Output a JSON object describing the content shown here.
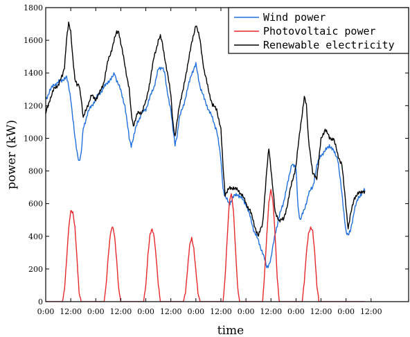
{
  "chart_data": {
    "type": "line",
    "title": "",
    "xlabel": "time",
    "ylabel": "power (kW)",
    "ylim": [
      0,
      1800
    ],
    "yticks": [
      "0",
      "200",
      "400",
      "600",
      "800",
      "1000",
      "1200",
      "1400",
      "1600",
      "1800"
    ],
    "xlim": [
      0,
      174
    ],
    "xtick_labels": [
      "0:00",
      "12:00",
      "0:00",
      "12:00",
      "0:00",
      "12:00",
      "0:00",
      "12:00",
      "0:00",
      "12:00",
      "0:00",
      "12:00",
      "0:00",
      "12:00"
    ],
    "grid": false,
    "legend": {
      "position": "top-right"
    },
    "series": [
      {
        "name": "Wind power",
        "color": "#1f6fdc",
        "points": [
          [
            0,
            1240
          ],
          [
            2,
            1290
          ],
          [
            4,
            1330
          ],
          [
            6,
            1340
          ],
          [
            8,
            1360
          ],
          [
            10,
            1370
          ],
          [
            11,
            1320
          ],
          [
            12,
            1250
          ],
          [
            13,
            1120
          ],
          [
            14,
            1000
          ],
          [
            15,
            920
          ],
          [
            16,
            860
          ],
          [
            17,
            900
          ],
          [
            18,
            1060
          ],
          [
            20,
            1150
          ],
          [
            22,
            1200
          ],
          [
            24,
            1240
          ],
          [
            26,
            1280
          ],
          [
            28,
            1310
          ],
          [
            30,
            1350
          ],
          [
            32,
            1370
          ],
          [
            33,
            1400
          ],
          [
            34,
            1360
          ],
          [
            36,
            1290
          ],
          [
            38,
            1200
          ],
          [
            39,
            1100
          ],
          [
            40,
            1000
          ],
          [
            41,
            960
          ],
          [
            42,
            1000
          ],
          [
            44,
            1100
          ],
          [
            46,
            1150
          ],
          [
            48,
            1180
          ],
          [
            50,
            1250
          ],
          [
            52,
            1320
          ],
          [
            54,
            1420
          ],
          [
            56,
            1440
          ],
          [
            57,
            1400
          ],
          [
            58,
            1300
          ],
          [
            60,
            1180
          ],
          [
            61,
            1050
          ],
          [
            62,
            960
          ],
          [
            63,
            1020
          ],
          [
            64,
            1120
          ],
          [
            66,
            1200
          ],
          [
            68,
            1300
          ],
          [
            70,
            1400
          ],
          [
            72,
            1450
          ],
          [
            74,
            1320
          ],
          [
            76,
            1240
          ],
          [
            78,
            1180
          ],
          [
            80,
            1120
          ],
          [
            82,
            1050
          ],
          [
            84,
            870
          ],
          [
            85,
            700
          ],
          [
            86,
            640
          ],
          [
            88,
            600
          ],
          [
            90,
            640
          ],
          [
            92,
            660
          ],
          [
            94,
            630
          ],
          [
            96,
            600
          ],
          [
            98,
            520
          ],
          [
            100,
            430
          ],
          [
            102,
            370
          ],
          [
            104,
            300
          ],
          [
            106,
            210
          ],
          [
            107,
            230
          ],
          [
            108,
            260
          ],
          [
            110,
            420
          ],
          [
            112,
            520
          ],
          [
            114,
            610
          ],
          [
            116,
            720
          ],
          [
            118,
            850
          ],
          [
            120,
            810
          ],
          [
            121,
            580
          ],
          [
            122,
            500
          ],
          [
            124,
            560
          ],
          [
            126,
            660
          ],
          [
            128,
            700
          ],
          [
            130,
            830
          ],
          [
            132,
            900
          ],
          [
            134,
            920
          ],
          [
            136,
            960
          ],
          [
            138,
            920
          ],
          [
            140,
            880
          ],
          [
            142,
            660
          ],
          [
            144,
            430
          ],
          [
            145,
            400
          ],
          [
            146,
            430
          ],
          [
            148,
            560
          ],
          [
            150,
            640
          ],
          [
            152,
            670
          ],
          [
            153,
            680
          ]
        ]
      },
      {
        "name": "Photovoltaic power",
        "color": "#e8272c",
        "points": [
          [
            0,
            0
          ],
          [
            8,
            0
          ],
          [
            9,
            80
          ],
          [
            10,
            250
          ],
          [
            11,
            440
          ],
          [
            12,
            560
          ],
          [
            13,
            550
          ],
          [
            14,
            450
          ],
          [
            15,
            260
          ],
          [
            16,
            60
          ],
          [
            17,
            0
          ],
          [
            28,
            0
          ],
          [
            29,
            100
          ],
          [
            30,
            280
          ],
          [
            31,
            420
          ],
          [
            32,
            460
          ],
          [
            33,
            400
          ],
          [
            34,
            260
          ],
          [
            35,
            80
          ],
          [
            36,
            0
          ],
          [
            47,
            0
          ],
          [
            48,
            100
          ],
          [
            49,
            290
          ],
          [
            50,
            410
          ],
          [
            51,
            440
          ],
          [
            52,
            400
          ],
          [
            53,
            270
          ],
          [
            54,
            100
          ],
          [
            55,
            0
          ],
          [
            66,
            0
          ],
          [
            67,
            60
          ],
          [
            68,
            200
          ],
          [
            69,
            340
          ],
          [
            70,
            390
          ],
          [
            71,
            330
          ],
          [
            72,
            190
          ],
          [
            73,
            50
          ],
          [
            74,
            0
          ],
          [
            85,
            0
          ],
          [
            86,
            150
          ],
          [
            87,
            380
          ],
          [
            88,
            600
          ],
          [
            89,
            670
          ],
          [
            90,
            560
          ],
          [
            91,
            320
          ],
          [
            92,
            90
          ],
          [
            93,
            0
          ],
          [
            104,
            0
          ],
          [
            105,
            180
          ],
          [
            106,
            400
          ],
          [
            107,
            610
          ],
          [
            108,
            690
          ],
          [
            109,
            600
          ],
          [
            110,
            400
          ],
          [
            111,
            150
          ],
          [
            112,
            0
          ],
          [
            123,
            0
          ],
          [
            124,
            120
          ],
          [
            125,
            300
          ],
          [
            126,
            420
          ],
          [
            127,
            450
          ],
          [
            128,
            430
          ],
          [
            129,
            300
          ],
          [
            130,
            100
          ],
          [
            131,
            0
          ],
          [
            153,
            0
          ]
        ]
      },
      {
        "name": "Renewable electricity",
        "color": "#000000",
        "points": [
          [
            0,
            1150
          ],
          [
            2,
            1240
          ],
          [
            4,
            1300
          ],
          [
            6,
            1330
          ],
          [
            8,
            1380
          ],
          [
            9,
            1440
          ],
          [
            10,
            1610
          ],
          [
            11,
            1700
          ],
          [
            12,
            1650
          ],
          [
            13,
            1500
          ],
          [
            14,
            1360
          ],
          [
            15,
            1320
          ],
          [
            16,
            1330
          ],
          [
            17,
            1250
          ],
          [
            18,
            1120
          ],
          [
            20,
            1200
          ],
          [
            22,
            1260
          ],
          [
            24,
            1240
          ],
          [
            26,
            1280
          ],
          [
            28,
            1350
          ],
          [
            30,
            1480
          ],
          [
            32,
            1560
          ],
          [
            34,
            1650
          ],
          [
            35,
            1660
          ],
          [
            36,
            1580
          ],
          [
            38,
            1450
          ],
          [
            40,
            1300
          ],
          [
            41,
            1150
          ],
          [
            42,
            1080
          ],
          [
            44,
            1150
          ],
          [
            46,
            1160
          ],
          [
            48,
            1220
          ],
          [
            50,
            1350
          ],
          [
            52,
            1500
          ],
          [
            54,
            1600
          ],
          [
            55,
            1620
          ],
          [
            56,
            1580
          ],
          [
            58,
            1420
          ],
          [
            60,
            1270
          ],
          [
            61,
            1100
          ],
          [
            62,
            1000
          ],
          [
            63,
            1100
          ],
          [
            64,
            1200
          ],
          [
            66,
            1300
          ],
          [
            68,
            1450
          ],
          [
            70,
            1580
          ],
          [
            72,
            1700
          ],
          [
            74,
            1600
          ],
          [
            76,
            1410
          ],
          [
            78,
            1300
          ],
          [
            80,
            1200
          ],
          [
            82,
            1180
          ],
          [
            84,
            1050
          ],
          [
            85,
            830
          ],
          [
            86,
            660
          ],
          [
            88,
            690
          ],
          [
            90,
            700
          ],
          [
            92,
            680
          ],
          [
            94,
            660
          ],
          [
            96,
            600
          ],
          [
            98,
            560
          ],
          [
            100,
            470
          ],
          [
            102,
            400
          ],
          [
            104,
            480
          ],
          [
            106,
            800
          ],
          [
            107,
            940
          ],
          [
            108,
            820
          ],
          [
            110,
            540
          ],
          [
            112,
            500
          ],
          [
            114,
            500
          ],
          [
            116,
            600
          ],
          [
            118,
            730
          ],
          [
            120,
            830
          ],
          [
            122,
            1060
          ],
          [
            124,
            1250
          ],
          [
            125,
            1200
          ],
          [
            126,
            1000
          ],
          [
            128,
            780
          ],
          [
            130,
            760
          ],
          [
            132,
            990
          ],
          [
            134,
            1060
          ],
          [
            136,
            1000
          ],
          [
            138,
            1000
          ],
          [
            140,
            900
          ],
          [
            142,
            840
          ],
          [
            144,
            580
          ],
          [
            145,
            450
          ],
          [
            146,
            520
          ],
          [
            148,
            640
          ],
          [
            150,
            660
          ],
          [
            152,
            680
          ],
          [
            153,
            670
          ]
        ]
      }
    ]
  }
}
